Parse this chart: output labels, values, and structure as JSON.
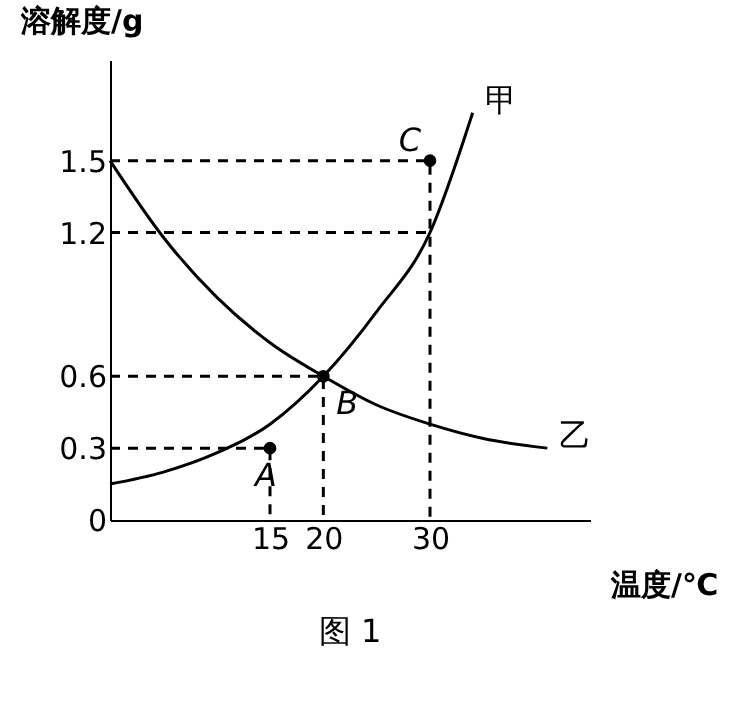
{
  "chart_data": {
    "type": "line",
    "xlabel": "温度/℃",
    "ylabel": "溶解度/g",
    "xlim": [
      0,
      45
    ],
    "ylim": [
      0,
      1.92
    ],
    "xticks": [
      15,
      20,
      30
    ],
    "yticks": [
      {
        "value": 0,
        "label": "0"
      },
      0.3,
      0.6,
      1.2,
      1.5
    ],
    "grid": false,
    "series": [
      {
        "name": "甲",
        "color": "#000000",
        "x": [
          0,
          5,
          10,
          15,
          20,
          25,
          30,
          34
        ],
        "values": [
          0.15,
          0.2,
          0.28,
          0.4,
          0.6,
          0.87,
          1.2,
          1.7
        ]
      },
      {
        "name": "乙",
        "color": "#000000",
        "x": [
          0,
          5,
          10,
          15,
          20,
          25,
          30,
          35,
          41
        ],
        "values": [
          1.5,
          1.18,
          0.93,
          0.74,
          0.6,
          0.48,
          0.4,
          0.34,
          0.3
        ]
      },
      {
        "color": "#000000",
        "type": "line",
        "line_style": "dashed",
        "x": [
          0,
          30,
          30
        ],
        "values": [
          1.5,
          1.5,
          0
        ]
      },
      {
        "color": "#000000",
        "type": "line",
        "line_style": "dashed",
        "x": [
          0,
          30
        ],
        "values": [
          1.2,
          1.2
        ]
      },
      {
        "color": "#000000",
        "type": "line",
        "line_style": "dashed",
        "x": [
          0,
          20,
          20
        ],
        "values": [
          0.6,
          0.6,
          0
        ]
      },
      {
        "color": "#000000",
        "type": "line",
        "line_style": "dashed",
        "x": [
          0,
          15,
          15
        ],
        "values": [
          0.3,
          0.3,
          0
        ]
      },
      {
        "color": "#000000",
        "type": "scatter",
        "marker": "circle",
        "x": [
          15,
          20,
          30
        ],
        "values": [
          0.3,
          0.6,
          1.5
        ]
      }
    ],
    "annotations": [
      {
        "text": "A",
        "x": 15,
        "y": 0.3
      },
      {
        "text": "B",
        "x": 20,
        "y": 0.6
      },
      {
        "text": "C",
        "x": 30,
        "y": 1.5
      },
      "图 1"
    ]
  }
}
